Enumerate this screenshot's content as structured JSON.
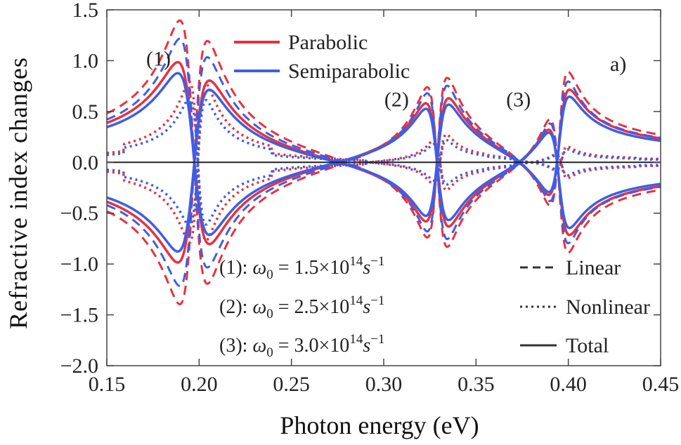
{
  "colors": {
    "parabolic": "#e8313f",
    "semiparabolic": "#3d5ee8",
    "axis": "#444444",
    "zero_line": "#222222",
    "style_legend": "#333333"
  },
  "chart_data": {
    "type": "line",
    "xlabel": "Photon energy (eV)",
    "ylabel": "Refractive index changes",
    "xlim": [
      0.15,
      0.45
    ],
    "ylim": [
      -2.0,
      1.5
    ],
    "xticks": [
      "0.15",
      "0.20",
      "0.25",
      "0.30",
      "0.35",
      "0.40",
      "0.45"
    ],
    "yticks": [
      "1.5",
      "1.0",
      "0.5",
      "0.0",
      "−0.5",
      "−1.0",
      "−1.5",
      "−2.0"
    ],
    "panel_label": "a)",
    "legend_models": [
      {
        "name": "Parabolic",
        "color": "#e8313f"
      },
      {
        "name": "Semiparabolic",
        "color": "#3d5ee8"
      }
    ],
    "legend_styles": [
      {
        "name": "Linear",
        "dash": "dashed"
      },
      {
        "name": "Nonlinear",
        "dash": "dotted"
      },
      {
        "name": "Total",
        "dash": "solid"
      }
    ],
    "peak_labels": [
      {
        "text": "(1)",
        "x": 0.178,
        "y": 0.95
      },
      {
        "text": "(2)",
        "x": 0.307,
        "y": 0.55
      },
      {
        "text": "(3)",
        "x": 0.373,
        "y": 0.55
      }
    ],
    "parameters": [
      {
        "label": "(1): ",
        "omega": "ω",
        "sub": "0",
        "mid": " = 1.5×10",
        "exp": "14",
        "s": "s",
        "sexp": "−1"
      },
      {
        "label": "(2): ",
        "omega": "ω",
        "sub": "0",
        "mid": " = 2.5×10",
        "exp": "14",
        "s": "s",
        "sexp": "−1"
      },
      {
        "label": "(3): ",
        "omega": "ω",
        "sub": "0",
        "mid": " = 3.0×10",
        "exp": "14",
        "s": "s",
        "sexp": "−1"
      }
    ],
    "resonances": [
      {
        "name": "(1)",
        "energy_eV": 0.197,
        "parabolic": {
          "linear_amp": 1.3,
          "nonlinear_peak": 0.78,
          "nonlinear_valley": -0.78,
          "total_peak": 0.9,
          "total_valley": -0.85
        },
        "semiparabolic": {
          "linear_amp": 1.13,
          "nonlinear_peak": 0.62,
          "nonlinear_valley": -0.62,
          "total_peak": 0.8,
          "total_valley": -0.82
        }
      },
      {
        "name": "(2)",
        "energy_eV": 0.329,
        "parabolic": {
          "linear_amp": 0.8,
          "nonlinear_peak": 0.25,
          "nonlinear_valley": -0.25,
          "total_peak": 0.62,
          "total_valley": -0.62
        },
        "semiparabolic": {
          "linear_amp": 0.73,
          "nonlinear_peak": 0.2,
          "nonlinear_valley": -0.2,
          "total_peak": 0.56,
          "total_valley": -0.56
        }
      },
      {
        "name": "(3)",
        "energy_eV": 0.395,
        "parabolic": {
          "linear_amp": 0.67,
          "nonlinear_peak": 0.12,
          "nonlinear_valley": -0.12,
          "total_peak": 0.53,
          "total_valley": -0.53
        },
        "semiparabolic": {
          "linear_amp": 0.6,
          "nonlinear_peak": 0.1,
          "nonlinear_valley": -0.1,
          "total_peak": 0.48,
          "total_valley": -0.48
        }
      }
    ],
    "linewidth_eV": {
      "resonance_1": 0.0075,
      "resonance_2": 0.0055,
      "resonance_3": 0.005
    },
    "grid": false
  }
}
